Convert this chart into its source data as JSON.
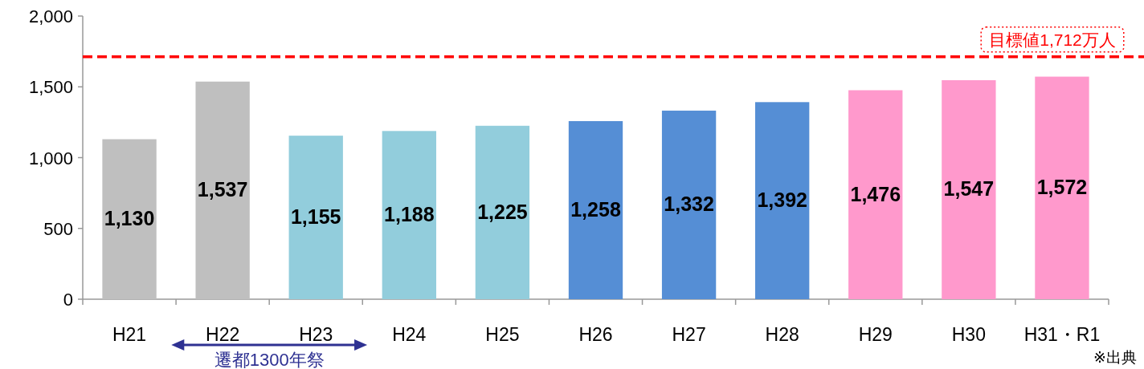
{
  "chart_data": {
    "type": "bar",
    "categories": [
      "H21",
      "H22",
      "H23",
      "H24",
      "H25",
      "H26",
      "H27",
      "H28",
      "H29",
      "H30",
      "H31・R1"
    ],
    "values": [
      1130,
      1537,
      1155,
      1188,
      1225,
      1258,
      1332,
      1392,
      1476,
      1547,
      1572
    ],
    "colors": [
      "#bfbfbf",
      "#bfbfbf",
      "#92cddc",
      "#92cddc",
      "#92cddc",
      "#558ed5",
      "#558ed5",
      "#558ed5",
      "#ff99cc",
      "#ff99cc",
      "#ff99cc"
    ],
    "ylim": [
      0,
      2000
    ],
    "yticks": [
      0,
      {
        "value": 500,
        "label": "500"
      },
      {
        "value": 1000,
        "label": "1,000"
      },
      {
        "value": 1500,
        "label": "1,500"
      },
      {
        "value": 2000,
        "label": "2,000"
      }
    ],
    "value_labels": [
      "1,130",
      "1,537",
      "1,155",
      "1,188",
      "1,225",
      "1,258",
      "1,332",
      "1,392",
      "1,476",
      "1,547",
      "1,572"
    ],
    "ref_lines": [
      {
        "axis": "y",
        "value": 1712,
        "label": "目標値1,712万人",
        "color": "#ff0000",
        "line_style": "dashed"
      }
    ],
    "annotations": [
      "遷都1300年祭",
      "※出典"
    ]
  }
}
